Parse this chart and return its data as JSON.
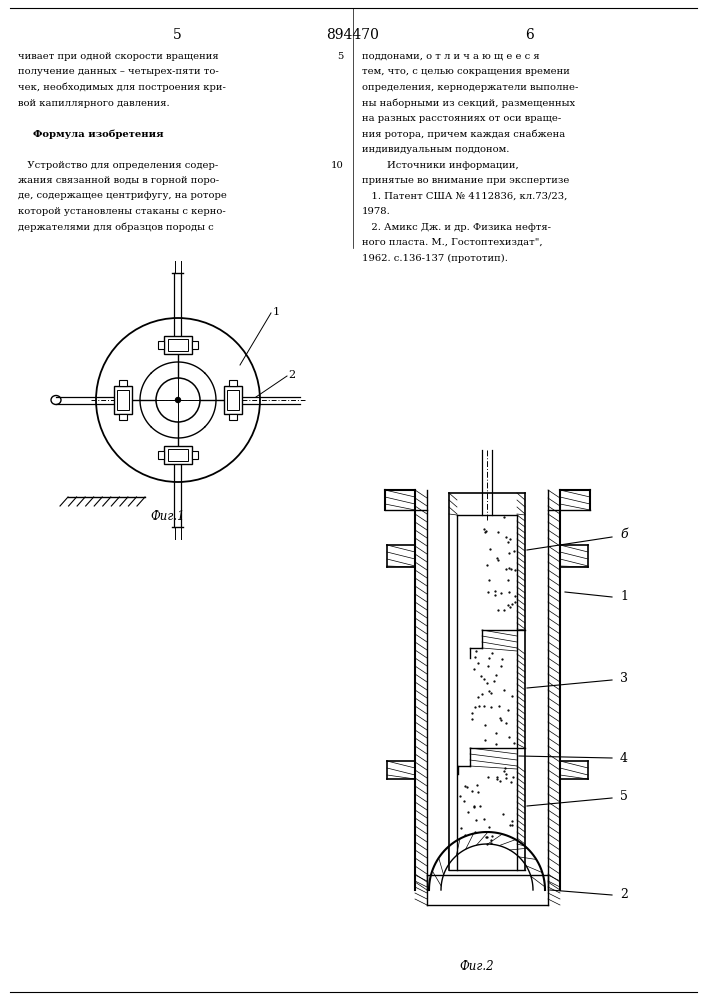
{
  "page_number_left": "5",
  "page_number_center": "894470",
  "page_number_right": "6",
  "left_column_text": [
    "чивает при одной скорости вращения",
    "получение данных – четырех-пяти то-",
    "чек, необходимых для построения кри-",
    "вой капиллярного давления.",
    "",
    "   Формула изобретения",
    "",
    "   Устройство для определения содер-",
    "жания связанной воды в горной поро-",
    "де, содержащее центрифугу, на роторе",
    "которой установлены стаканы с керно-",
    "держателями для образцов породы с"
  ],
  "right_col_line5": "поддонами, о т л и ч а ю щ е е с я",
  "right_col_lines": [
    "поддонами, о т л и ч а ю щ е е с я",
    "тем, что, с целью сокращения времени",
    "определения, кернодержатели выполне-",
    "ны наборными из секций, размещенных",
    "на разных расстояниях от оси враще-",
    "ния ротора, причем каждая снабжена",
    "индивидуальным поддоном.",
    "        Источники информации,",
    "принятые во внимание при экспертизе",
    "   1. Патент США № 4112836, кл.73/23,",
    "1978.",
    "   2. Амикс Дж. и др. Физика нефтя-",
    "ного пласта. М., Гостоптехиздат\",",
    "1962. с.136-137 (прототип)."
  ],
  "fig1_caption": "Фиг.1",
  "fig2_caption": "Фиг.2",
  "bg_color": "#ffffff",
  "text_color": "#000000",
  "line_color": "#000000"
}
